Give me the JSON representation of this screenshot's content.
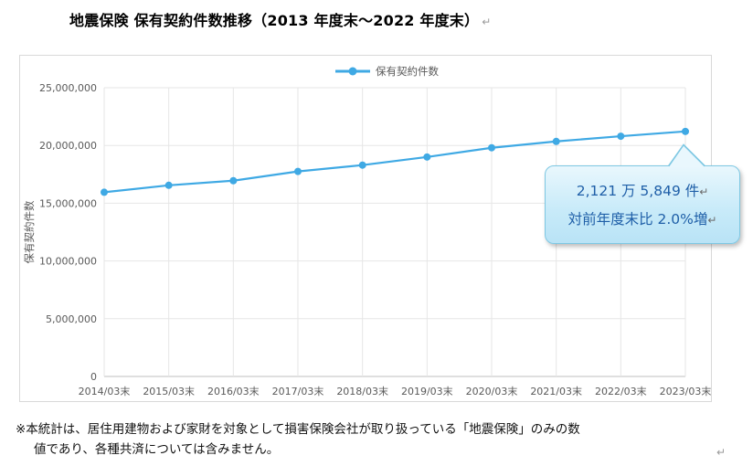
{
  "title": "地震保険  保有契約件数推移（2013 年度末～2022 年度末）",
  "paragraph_mark": "↵",
  "callout": {
    "line1": "2,121 万 5,849 件",
    "line2": "対前年度末比 2.0%増"
  },
  "note": {
    "line1": "※本統計は、居住用建物および家財を対象として損害保険会社が取り扱っている「地震保険」のみの数",
    "line2": "値であり、各種共済については含みません。"
  },
  "colors": {
    "series": "#3fa9e4",
    "grid": "#e6e6e6",
    "axis_text": "#595959"
  },
  "chart_data": {
    "type": "line",
    "categories": [
      "2014/03末",
      "2015/03末",
      "2016/03末",
      "2017/03末",
      "2018/03末",
      "2019/03末",
      "2020/03末",
      "2021/03末",
      "2022/03末",
      "2023/03末"
    ],
    "series": [
      {
        "name": "保有契約件数",
        "values": [
          15950000,
          16550000,
          16950000,
          17750000,
          18300000,
          19000000,
          19800000,
          20350000,
          20800000,
          21215849
        ]
      }
    ],
    "ylabel": "保有契約件数",
    "yticks": [
      "0",
      "5,000,000",
      "10,000,000",
      "15,000,000",
      "20,000,000",
      "25,000,000"
    ],
    "ylim": [
      0,
      25000000
    ],
    "legend": "top-center",
    "grid": true
  }
}
